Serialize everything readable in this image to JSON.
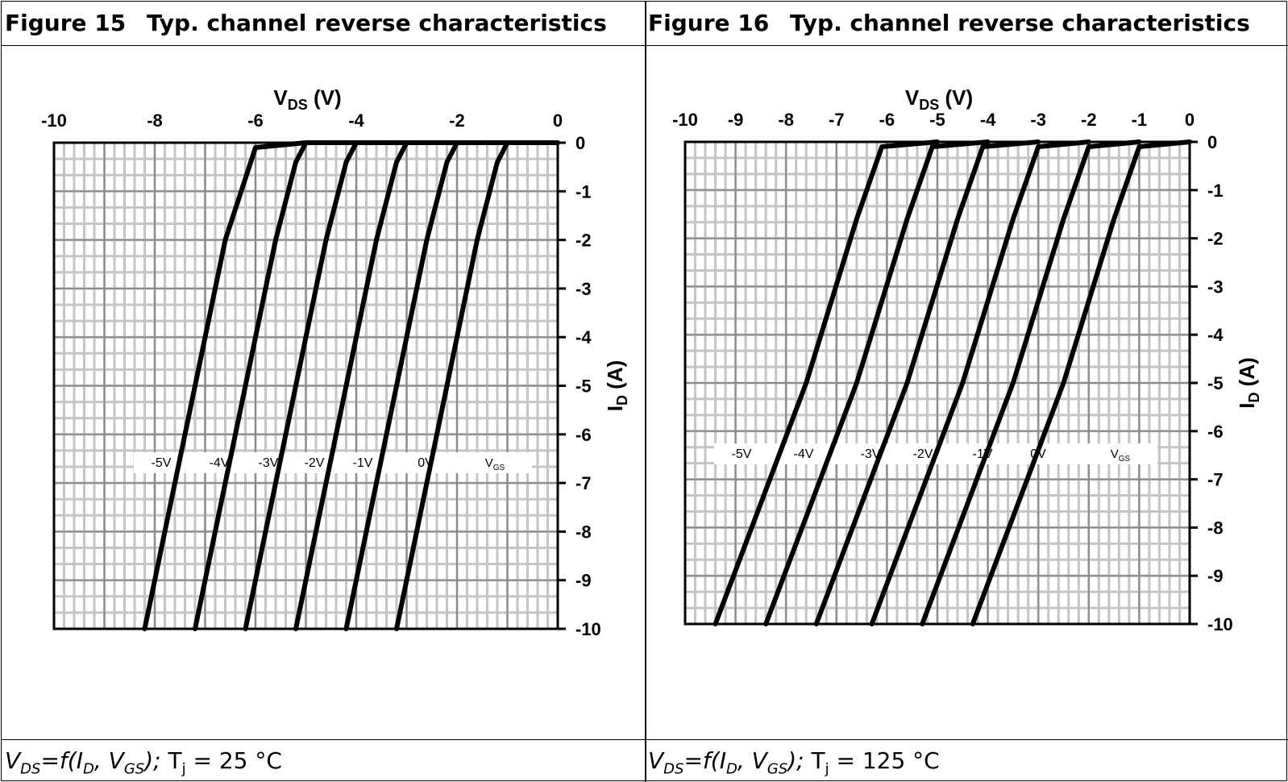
{
  "figures": [
    {
      "number": "Figure 15",
      "title": "Typ. channel reverse characteristics",
      "caption": {
        "y_var": "V",
        "y_sub": "DS",
        "eq": "=f(",
        "x_var": "I",
        "x_sub": "D",
        "sep": ", ",
        "g_var": "V",
        "g_sub": "GS",
        "close": ");",
        "tj": " T",
        "tj_sub": "j",
        "cond": " = 25 °C"
      }
    },
    {
      "number": "Figure 16",
      "title": "Typ. channel reverse characteristics",
      "caption": {
        "y_var": "V",
        "y_sub": "DS",
        "eq": "=f(",
        "x_var": "I",
        "x_sub": "D",
        "sep": ", ",
        "g_var": "V",
        "g_sub": "GS",
        "close": ");",
        "tj": " T",
        "tj_sub": "j",
        "cond": " = 125 °C"
      }
    }
  ],
  "chart_data": [
    {
      "type": "line",
      "xlabel": "V",
      "xlabel_sub": "DS",
      "xlabel_unit": " (V)",
      "ylabel": "I",
      "ylabel_sub": "D",
      "ylabel_unit": " (A)",
      "xlim": [
        -10,
        0
      ],
      "ylim": [
        -10,
        0
      ],
      "x_ticks": [
        -10,
        -8,
        -6,
        -4,
        -2,
        0
      ],
      "x_tick_labels": [
        "-10",
        "-8",
        "-6",
        "-4",
        "-2",
        "0"
      ],
      "y_ticks": [
        0,
        -1,
        -2,
        -3,
        -4,
        -5,
        -6,
        -7,
        -8,
        -9,
        -10
      ],
      "y_tick_labels": [
        "0",
        "-1",
        "-2",
        "-3",
        "-4",
        "-5",
        "-6",
        "-7",
        "-8",
        "-9",
        "-10"
      ],
      "grid": true,
      "legend_title": "V",
      "legend_title_sub": "GS",
      "series": [
        {
          "name": "-5V",
          "x": [
            -8.2,
            -7.2,
            -6.6,
            -6.0,
            -5.0
          ],
          "y": [
            -10.0,
            -5.0,
            -2.0,
            -0.1,
            0
          ]
        },
        {
          "name": "-4V",
          "x": [
            -7.2,
            -6.2,
            -5.6,
            -5.2,
            -5.0,
            -4.0
          ],
          "y": [
            -10.0,
            -5.0,
            -2.0,
            -0.4,
            0,
            0
          ]
        },
        {
          "name": "-3V",
          "x": [
            -6.2,
            -5.2,
            -4.6,
            -4.2,
            -4.0,
            -3.0
          ],
          "y": [
            -10.0,
            -5.0,
            -2.0,
            -0.4,
            0,
            0
          ]
        },
        {
          "name": "-2V",
          "x": [
            -5.2,
            -4.2,
            -3.6,
            -3.2,
            -3.0,
            -2.0
          ],
          "y": [
            -10.0,
            -5.0,
            -2.0,
            -0.4,
            0,
            0
          ]
        },
        {
          "name": "-1V",
          "x": [
            -4.2,
            -3.2,
            -2.6,
            -2.2,
            -2.0,
            -1.0
          ],
          "y": [
            -10.0,
            -5.0,
            -2.0,
            -0.4,
            0,
            0
          ]
        },
        {
          "name": "0V",
          "x": [
            -3.2,
            -2.2,
            -1.6,
            -1.2,
            -1.0,
            0.0
          ],
          "y": [
            -10.0,
            -5.0,
            -2.0,
            -0.4,
            0,
            0
          ]
        }
      ]
    },
    {
      "type": "line",
      "xlabel": "V",
      "xlabel_sub": "DS",
      "xlabel_unit": " (V)",
      "ylabel": "I",
      "ylabel_sub": "D",
      "ylabel_unit": " (A)",
      "xlim": [
        -10,
        0
      ],
      "ylim": [
        -10,
        0
      ],
      "x_ticks": [
        -10,
        -9,
        -8,
        -7,
        -6,
        -5,
        -4,
        -3,
        -2,
        -1,
        0
      ],
      "x_tick_labels": [
        "-10",
        "-9",
        "-8",
        "-7",
        "-6",
        "-5",
        "-4",
        "-3",
        "-2",
        "-1",
        "0"
      ],
      "y_ticks": [
        0,
        -1,
        -2,
        -3,
        -4,
        -5,
        -6,
        -7,
        -8,
        -9,
        -10
      ],
      "y_tick_labels": [
        "0",
        "-1",
        "-2",
        "-3",
        "-4",
        "-5",
        "-6",
        "-7",
        "-8",
        "-9",
        "-10"
      ],
      "grid": true,
      "legend_title": "V",
      "legend_title_sub": "GS",
      "series": [
        {
          "name": "-5V",
          "x": [
            -9.4,
            -7.6,
            -6.6,
            -6.1,
            -5.0
          ],
          "y": [
            -10.0,
            -5.0,
            -1.6,
            -0.1,
            0
          ]
        },
        {
          "name": "-4V",
          "x": [
            -8.4,
            -6.6,
            -5.6,
            -5.1,
            -4.0
          ],
          "y": [
            -10.0,
            -5.0,
            -1.6,
            -0.1,
            0
          ]
        },
        {
          "name": "-3V",
          "x": [
            -7.4,
            -5.6,
            -4.6,
            -4.1,
            -3.0
          ],
          "y": [
            -10.0,
            -5.0,
            -1.6,
            -0.1,
            0
          ]
        },
        {
          "name": "-2V",
          "x": [
            -6.3,
            -4.5,
            -3.5,
            -3.0,
            -2.0
          ],
          "y": [
            -10.0,
            -5.0,
            -1.6,
            -0.1,
            0
          ]
        },
        {
          "name": "-1V",
          "x": [
            -5.3,
            -3.5,
            -2.5,
            -2.0,
            -1.0
          ],
          "y": [
            -10.0,
            -5.0,
            -1.6,
            -0.1,
            0
          ]
        },
        {
          "name": "0V",
          "x": [
            -4.3,
            -2.5,
            -1.5,
            -1.0,
            0.0
          ],
          "y": [
            -10.0,
            -5.0,
            -1.6,
            -0.1,
            0
          ]
        }
      ]
    }
  ]
}
